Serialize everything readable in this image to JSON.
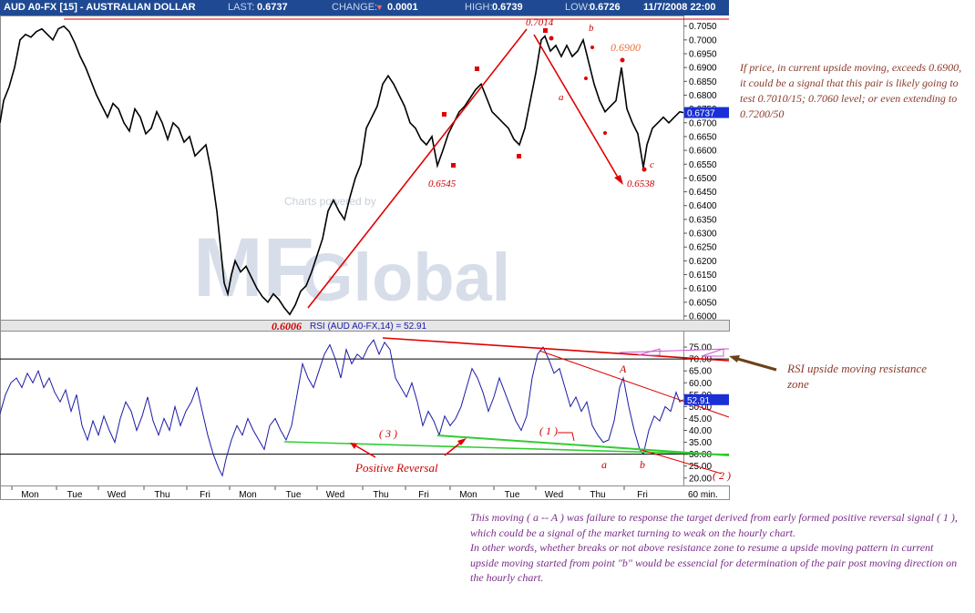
{
  "header": {
    "symbol": "AUD A0-FX [15] - AUSTRALIAN DOLLAR",
    "last_label": "LAST:",
    "last_value": "0.6737",
    "change_label": "CHANGE:",
    "change_arrow": "▼",
    "change_value": "0.0001",
    "high_label": "HIGH:",
    "high_value": "0.6739",
    "low_label": "LOW:",
    "low_value": "0.6726",
    "datetime": "11/7/2008 22:00"
  },
  "colors": {
    "header_bg": "#1f4a93",
    "price_line": "#000000",
    "rsi_line": "#1a1aa8",
    "annotation_red": "#e00000",
    "support_green": "#33cc33",
    "current_marker": "#1a2fd6",
    "watermark": "#c4cede"
  },
  "watermark": {
    "credit": "Charts powered by",
    "logo_a": "MF",
    "logo_b": "Global"
  },
  "chart_data": [
    {
      "type": "line",
      "name": "price",
      "y_ticks": [
        "0.7050",
        "0.7000",
        "0.6950",
        "0.6900",
        "0.6850",
        "0.6800",
        "0.6750",
        "0.6700",
        "0.6650",
        "0.6600",
        "0.6550",
        "0.6500",
        "0.6450",
        "0.6400",
        "0.6350",
        "0.6300",
        "0.6250",
        "0.6200",
        "0.6150",
        "0.6100",
        "0.6050",
        "0.6000"
      ],
      "ylim": [
        0.6,
        0.7072
      ],
      "current_value": "0.6737",
      "x_day_labels": [
        "Mon",
        "Tue",
        "Wed",
        "Thu",
        "Fri",
        "Mon",
        "Tue",
        "Wed",
        "Thu",
        "Fri",
        "Mon",
        "Tue",
        "Wed",
        "Thu",
        "Fri"
      ],
      "x_unit": "60 min.",
      "points": [
        [
          0,
          0.67
        ],
        [
          4,
          0.678
        ],
        [
          10,
          0.683
        ],
        [
          16,
          0.69
        ],
        [
          22,
          0.7
        ],
        [
          28,
          0.702
        ],
        [
          34,
          0.701
        ],
        [
          40,
          0.703
        ],
        [
          46,
          0.704
        ],
        [
          52,
          0.702
        ],
        [
          58,
          0.7
        ],
        [
          64,
          0.704
        ],
        [
          70,
          0.705
        ],
        [
          76,
          0.703
        ],
        [
          82,
          0.699
        ],
        [
          88,
          0.694
        ],
        [
          94,
          0.69
        ],
        [
          100,
          0.685
        ],
        [
          106,
          0.68
        ],
        [
          112,
          0.676
        ],
        [
          118,
          0.672
        ],
        [
          124,
          0.677
        ],
        [
          130,
          0.675
        ],
        [
          136,
          0.67
        ],
        [
          142,
          0.667
        ],
        [
          148,
          0.675
        ],
        [
          154,
          0.672
        ],
        [
          160,
          0.666
        ],
        [
          166,
          0.668
        ],
        [
          172,
          0.674
        ],
        [
          178,
          0.67
        ],
        [
          184,
          0.664
        ],
        [
          190,
          0.67
        ],
        [
          196,
          0.668
        ],
        [
          202,
          0.663
        ],
        [
          208,
          0.665
        ],
        [
          214,
          0.658
        ],
        [
          220,
          0.66
        ],
        [
          226,
          0.662
        ],
        [
          232,
          0.652
        ],
        [
          238,
          0.638
        ],
        [
          242,
          0.625
        ],
        [
          246,
          0.612
        ],
        [
          250,
          0.608
        ],
        [
          254,
          0.615
        ],
        [
          258,
          0.62
        ],
        [
          264,
          0.616
        ],
        [
          270,
          0.618
        ],
        [
          276,
          0.614
        ],
        [
          282,
          0.61
        ],
        [
          288,
          0.607
        ],
        [
          294,
          0.605
        ],
        [
          300,
          0.608
        ],
        [
          306,
          0.606
        ],
        [
          312,
          0.603
        ],
        [
          318,
          0.6006
        ],
        [
          324,
          0.604
        ],
        [
          330,
          0.609
        ],
        [
          336,
          0.611
        ],
        [
          342,
          0.616
        ],
        [
          348,
          0.622
        ],
        [
          354,
          0.628
        ],
        [
          360,
          0.638
        ],
        [
          366,
          0.642
        ],
        [
          372,
          0.638
        ],
        [
          378,
          0.635
        ],
        [
          384,
          0.643
        ],
        [
          390,
          0.65
        ],
        [
          396,
          0.655
        ],
        [
          402,
          0.668
        ],
        [
          408,
          0.672
        ],
        [
          414,
          0.676
        ],
        [
          420,
          0.684
        ],
        [
          426,
          0.687
        ],
        [
          432,
          0.684
        ],
        [
          438,
          0.68
        ],
        [
          444,
          0.676
        ],
        [
          450,
          0.67
        ],
        [
          456,
          0.668
        ],
        [
          462,
          0.664
        ],
        [
          468,
          0.662
        ],
        [
          474,
          0.665
        ],
        [
          480,
          0.6545
        ],
        [
          486,
          0.66
        ],
        [
          492,
          0.666
        ],
        [
          498,
          0.67
        ],
        [
          504,
          0.674
        ],
        [
          510,
          0.676
        ],
        [
          516,
          0.679
        ],
        [
          522,
          0.682
        ],
        [
          528,
          0.684
        ],
        [
          534,
          0.679
        ],
        [
          540,
          0.674
        ],
        [
          546,
          0.672
        ],
        [
          552,
          0.67
        ],
        [
          558,
          0.668
        ],
        [
          564,
          0.664
        ],
        [
          570,
          0.662
        ],
        [
          576,
          0.668
        ],
        [
          582,
          0.678
        ],
        [
          588,
          0.688
        ],
        [
          594,
          0.7
        ],
        [
          598,
          0.7014
        ],
        [
          604,
          0.696
        ],
        [
          610,
          0.698
        ],
        [
          616,
          0.694
        ],
        [
          622,
          0.698
        ],
        [
          628,
          0.694
        ],
        [
          634,
          0.696
        ],
        [
          640,
          0.7
        ],
        [
          646,
          0.692
        ],
        [
          652,
          0.684
        ],
        [
          658,
          0.678
        ],
        [
          664,
          0.674
        ],
        [
          670,
          0.676
        ],
        [
          676,
          0.678
        ],
        [
          682,
          0.69
        ],
        [
          688,
          0.675
        ],
        [
          694,
          0.67
        ],
        [
          700,
          0.666
        ],
        [
          706,
          0.6538
        ],
        [
          710,
          0.662
        ],
        [
          716,
          0.668
        ],
        [
          722,
          0.67
        ],
        [
          728,
          0.672
        ],
        [
          734,
          0.67
        ],
        [
          740,
          0.672
        ],
        [
          746,
          0.674
        ],
        [
          750,
          0.6737
        ]
      ]
    },
    {
      "type": "line",
      "name": "RSI (AUD A0-FX,14)",
      "title": "RSI (AUD A0-FX,14) = 52.91",
      "y_ticks": [
        "75.00",
        "70.00",
        "65.00",
        "60.00",
        "55.00",
        "50.00",
        "45.00",
        "40.00",
        "35.00",
        "30.00",
        "25.00",
        "20.00"
      ],
      "ylim": [
        18,
        80
      ],
      "guide_levels": [
        70,
        30
      ],
      "current_value": "52.91",
      "points": [
        [
          0,
          47
        ],
        [
          6,
          55
        ],
        [
          12,
          60
        ],
        [
          18,
          62
        ],
        [
          24,
          58
        ],
        [
          30,
          64
        ],
        [
          36,
          60
        ],
        [
          42,
          65
        ],
        [
          48,
          58
        ],
        [
          54,
          62
        ],
        [
          60,
          56
        ],
        [
          66,
          52
        ],
        [
          72,
          57
        ],
        [
          78,
          48
        ],
        [
          84,
          55
        ],
        [
          90,
          42
        ],
        [
          96,
          36
        ],
        [
          102,
          44
        ],
        [
          108,
          38
        ],
        [
          114,
          46
        ],
        [
          120,
          40
        ],
        [
          126,
          35
        ],
        [
          132,
          45
        ],
        [
          138,
          52
        ],
        [
          144,
          48
        ],
        [
          150,
          40
        ],
        [
          156,
          46
        ],
        [
          162,
          54
        ],
        [
          168,
          44
        ],
        [
          174,
          38
        ],
        [
          180,
          45
        ],
        [
          186,
          40
        ],
        [
          192,
          50
        ],
        [
          198,
          42
        ],
        [
          204,
          48
        ],
        [
          210,
          52
        ],
        [
          216,
          58
        ],
        [
          222,
          48
        ],
        [
          228,
          38
        ],
        [
          234,
          30
        ],
        [
          240,
          24
        ],
        [
          244,
          21
        ],
        [
          248,
          28
        ],
        [
          254,
          36
        ],
        [
          260,
          42
        ],
        [
          266,
          38
        ],
        [
          272,
          45
        ],
        [
          278,
          40
        ],
        [
          284,
          36
        ],
        [
          290,
          32
        ],
        [
          296,
          42
        ],
        [
          302,
          45
        ],
        [
          308,
          40
        ],
        [
          314,
          36
        ],
        [
          320,
          42
        ],
        [
          326,
          55
        ],
        [
          332,
          68
        ],
        [
          338,
          62
        ],
        [
          344,
          58
        ],
        [
          350,
          65
        ],
        [
          356,
          72
        ],
        [
          362,
          76
        ],
        [
          368,
          70
        ],
        [
          374,
          62
        ],
        [
          380,
          74
        ],
        [
          386,
          68
        ],
        [
          392,
          72
        ],
        [
          398,
          70
        ],
        [
          404,
          75
        ],
        [
          410,
          78
        ],
        [
          416,
          72
        ],
        [
          422,
          77
        ],
        [
          428,
          74
        ],
        [
          434,
          62
        ],
        [
          440,
          58
        ],
        [
          446,
          54
        ],
        [
          452,
          60
        ],
        [
          458,
          52
        ],
        [
          464,
          42
        ],
        [
          470,
          48
        ],
        [
          476,
          44
        ],
        [
          482,
          38
        ],
        [
          488,
          46
        ],
        [
          494,
          42
        ],
        [
          500,
          45
        ],
        [
          506,
          50
        ],
        [
          512,
          58
        ],
        [
          518,
          66
        ],
        [
          524,
          62
        ],
        [
          530,
          56
        ],
        [
          536,
          48
        ],
        [
          542,
          54
        ],
        [
          548,
          62
        ],
        [
          554,
          56
        ],
        [
          560,
          50
        ],
        [
          566,
          44
        ],
        [
          572,
          40
        ],
        [
          578,
          46
        ],
        [
          584,
          62
        ],
        [
          590,
          72
        ],
        [
          596,
          75
        ],
        [
          602,
          70
        ],
        [
          608,
          64
        ],
        [
          614,
          66
        ],
        [
          620,
          58
        ],
        [
          626,
          50
        ],
        [
          632,
          54
        ],
        [
          638,
          48
        ],
        [
          644,
          52
        ],
        [
          650,
          42
        ],
        [
          656,
          38
        ],
        [
          662,
          35
        ],
        [
          668,
          36
        ],
        [
          674,
          44
        ],
        [
          680,
          58
        ],
        [
          684,
          62
        ],
        [
          690,
          50
        ],
        [
          696,
          40
        ],
        [
          702,
          32
        ],
        [
          706,
          30
        ],
        [
          712,
          40
        ],
        [
          718,
          46
        ],
        [
          724,
          44
        ],
        [
          730,
          50
        ],
        [
          736,
          48
        ],
        [
          742,
          56
        ],
        [
          746,
          52
        ],
        [
          750,
          52.91
        ]
      ]
    }
  ],
  "annotations": {
    "low_price": "0.6006",
    "mid_low": "0.6545",
    "peak": "0.7014",
    "target_low": "0.6538",
    "level_6900": "0.6900",
    "wave_a_price": "a",
    "wave_b_price": "b",
    "wave_c_price": "c",
    "rsi_A": "A",
    "rsi_a": "a",
    "rsi_b": "b",
    "rsi_1": "( 1 )",
    "rsi_2": "( 2 )",
    "rsi_3": "( 3 )",
    "positive_reversal": "Positive Reversal"
  },
  "notes": {
    "right": "If price, in current upside moving, exceeds 0.6900, it could be a signal that this pair is likely going to test 0.7010/15; 0.7060 level; or even extending to 0.7200/50",
    "rsi_zone": "RSI upside moving resistance zone",
    "bottom_p1": "This moving ( a -- A ) was failure to response the target derived from early formed positive reversal signal ( 1 ), which could be a signal of the market turning to weak on the hourly chart.",
    "bottom_p2": "In other words, whether breaks or not above resistance zone to resume a upside moving pattern in current upside moving started from point \"b\" would be essencial for determination of the pair post moving direction on the hourly chart."
  }
}
